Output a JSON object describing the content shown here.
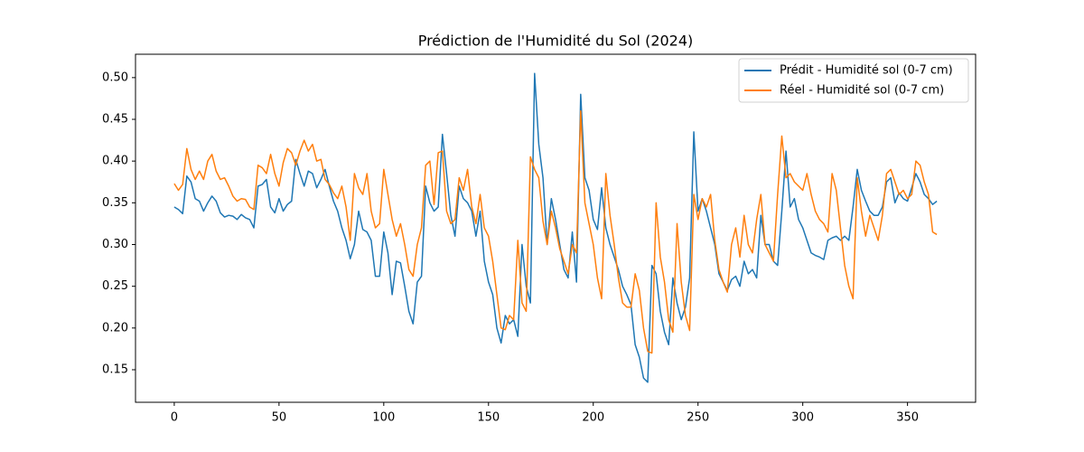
{
  "chart_data": {
    "type": "line",
    "title": "Prédiction de l'Humidité du Sol (2024)",
    "x": [
      0,
      2,
      4,
      6,
      8,
      10,
      12,
      14,
      16,
      18,
      20,
      22,
      24,
      26,
      28,
      30,
      32,
      34,
      36,
      38,
      40,
      42,
      44,
      46,
      48,
      50,
      52,
      54,
      56,
      58,
      60,
      62,
      64,
      66,
      68,
      70,
      72,
      74,
      76,
      78,
      80,
      82,
      84,
      86,
      88,
      90,
      92,
      94,
      96,
      98,
      100,
      102,
      104,
      106,
      108,
      110,
      112,
      114,
      116,
      118,
      120,
      122,
      124,
      126,
      128,
      130,
      132,
      134,
      136,
      138,
      140,
      142,
      144,
      146,
      148,
      150,
      152,
      154,
      156,
      158,
      160,
      162,
      164,
      166,
      168,
      170,
      172,
      174,
      176,
      178,
      180,
      182,
      184,
      186,
      188,
      190,
      192,
      194,
      196,
      198,
      200,
      202,
      204,
      206,
      208,
      210,
      212,
      214,
      216,
      218,
      220,
      222,
      224,
      226,
      228,
      230,
      232,
      234,
      236,
      238,
      240,
      242,
      244,
      246,
      248,
      250,
      252,
      254,
      256,
      258,
      260,
      262,
      264,
      266,
      268,
      270,
      272,
      274,
      276,
      278,
      280,
      282,
      284,
      286,
      288,
      290,
      292,
      294,
      296,
      298,
      300,
      302,
      304,
      306,
      308,
      310,
      312,
      314,
      316,
      318,
      320,
      322,
      324,
      326,
      328,
      330,
      332,
      334,
      336,
      338,
      340,
      342,
      344,
      346,
      348,
      350,
      352,
      354,
      356,
      358,
      360,
      362,
      364
    ],
    "series": [
      {
        "name": "Prédit - Humidité sol (0-7 cm)",
        "color": "#1f77b4",
        "values": [
          0.345,
          0.342,
          0.337,
          0.382,
          0.375,
          0.355,
          0.352,
          0.34,
          0.35,
          0.358,
          0.352,
          0.338,
          0.333,
          0.335,
          0.334,
          0.33,
          0.336,
          0.332,
          0.33,
          0.32,
          0.37,
          0.372,
          0.378,
          0.345,
          0.338,
          0.355,
          0.34,
          0.348,
          0.352,
          0.402,
          0.385,
          0.37,
          0.388,
          0.385,
          0.368,
          0.378,
          0.39,
          0.37,
          0.352,
          0.34,
          0.32,
          0.305,
          0.283,
          0.3,
          0.34,
          0.318,
          0.315,
          0.305,
          0.262,
          0.262,
          0.315,
          0.29,
          0.24,
          0.28,
          0.278,
          0.25,
          0.22,
          0.205,
          0.255,
          0.262,
          0.37,
          0.35,
          0.34,
          0.345,
          0.432,
          0.385,
          0.335,
          0.31,
          0.37,
          0.355,
          0.35,
          0.34,
          0.31,
          0.34,
          0.28,
          0.255,
          0.24,
          0.2,
          0.182,
          0.215,
          0.205,
          0.21,
          0.19,
          0.3,
          0.25,
          0.23,
          0.505,
          0.42,
          0.38,
          0.3,
          0.355,
          0.33,
          0.3,
          0.27,
          0.26,
          0.315,
          0.255,
          0.48,
          0.38,
          0.365,
          0.33,
          0.318,
          0.368,
          0.32,
          0.3,
          0.285,
          0.27,
          0.25,
          0.24,
          0.228,
          0.18,
          0.165,
          0.14,
          0.135,
          0.275,
          0.265,
          0.22,
          0.195,
          0.18,
          0.26,
          0.23,
          0.21,
          0.225,
          0.26,
          0.435,
          0.34,
          0.355,
          0.34,
          0.32,
          0.3,
          0.265,
          0.255,
          0.245,
          0.258,
          0.262,
          0.25,
          0.28,
          0.265,
          0.27,
          0.26,
          0.335,
          0.3,
          0.3,
          0.28,
          0.275,
          0.34,
          0.412,
          0.345,
          0.355,
          0.33,
          0.32,
          0.305,
          0.29,
          0.287,
          0.285,
          0.282,
          0.305,
          0.308,
          0.31,
          0.305,
          0.31,
          0.305,
          0.345,
          0.39,
          0.365,
          0.352,
          0.34,
          0.335,
          0.335,
          0.345,
          0.375,
          0.38,
          0.35,
          0.362,
          0.355,
          0.352,
          0.368,
          0.385,
          0.375,
          0.36,
          0.355,
          0.348,
          0.352
        ]
      },
      {
        "name": "Réel - Humidité sol (0-7 cm)",
        "color": "#ff7f0e",
        "values": [
          0.373,
          0.365,
          0.372,
          0.415,
          0.39,
          0.378,
          0.388,
          0.378,
          0.4,
          0.408,
          0.388,
          0.378,
          0.38,
          0.37,
          0.358,
          0.352,
          0.355,
          0.354,
          0.345,
          0.342,
          0.395,
          0.392,
          0.385,
          0.408,
          0.385,
          0.37,
          0.398,
          0.415,
          0.41,
          0.395,
          0.412,
          0.425,
          0.412,
          0.42,
          0.4,
          0.402,
          0.378,
          0.372,
          0.362,
          0.355,
          0.37,
          0.345,
          0.305,
          0.385,
          0.368,
          0.36,
          0.385,
          0.34,
          0.32,
          0.325,
          0.39,
          0.36,
          0.33,
          0.31,
          0.325,
          0.3,
          0.27,
          0.262,
          0.3,
          0.32,
          0.395,
          0.4,
          0.348,
          0.41,
          0.412,
          0.34,
          0.325,
          0.33,
          0.38,
          0.365,
          0.39,
          0.345,
          0.325,
          0.36,
          0.32,
          0.31,
          0.28,
          0.24,
          0.2,
          0.198,
          0.215,
          0.21,
          0.305,
          0.23,
          0.22,
          0.405,
          0.39,
          0.38,
          0.328,
          0.3,
          0.34,
          0.32,
          0.295,
          0.28,
          0.265,
          0.3,
          0.29,
          0.46,
          0.35,
          0.325,
          0.3,
          0.26,
          0.235,
          0.385,
          0.335,
          0.3,
          0.26,
          0.23,
          0.225,
          0.225,
          0.265,
          0.245,
          0.2,
          0.172,
          0.17,
          0.35,
          0.285,
          0.255,
          0.21,
          0.195,
          0.325,
          0.255,
          0.215,
          0.197,
          0.36,
          0.33,
          0.355,
          0.345,
          0.36,
          0.305,
          0.27,
          0.255,
          0.243,
          0.3,
          0.32,
          0.285,
          0.335,
          0.3,
          0.29,
          0.33,
          0.36,
          0.3,
          0.29,
          0.28,
          0.36,
          0.43,
          0.38,
          0.385,
          0.375,
          0.37,
          0.365,
          0.385,
          0.36,
          0.34,
          0.33,
          0.325,
          0.315,
          0.385,
          0.365,
          0.32,
          0.275,
          0.25,
          0.235,
          0.38,
          0.34,
          0.31,
          0.335,
          0.32,
          0.305,
          0.335,
          0.385,
          0.39,
          0.375,
          0.36,
          0.365,
          0.355,
          0.36,
          0.4,
          0.395,
          0.375,
          0.36,
          0.315,
          0.312
        ]
      }
    ],
    "xlim": [
      -18.5,
      382.5
    ],
    "ylim": [
      0.111,
      0.528
    ],
    "xticks": [
      0,
      50,
      100,
      150,
      200,
      250,
      300,
      350
    ],
    "yticks": [
      0.15,
      {
        "value": 0.2,
        "label": "0.20"
      },
      0.25,
      {
        "value": 0.3,
        "label": "0.30"
      },
      0.35,
      {
        "value": 0.4,
        "label": "0.40"
      },
      0.45,
      {
        "value": 0.5,
        "label": "0.50"
      }
    ],
    "grid": false,
    "legend": "upper right"
  }
}
